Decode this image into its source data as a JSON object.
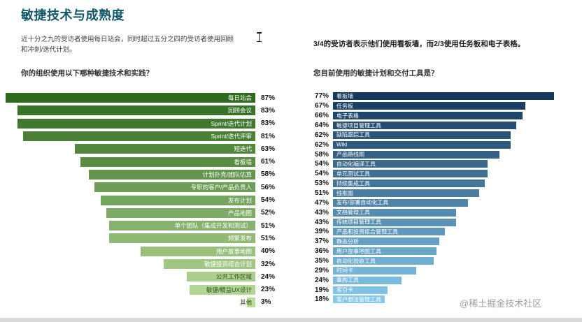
{
  "page": {
    "title": "敏捷技术与成熟度",
    "watermark": "@稀土掘金技术社区"
  },
  "left": {
    "intro": "近十分之九的受访者使用每日站会，同时超过五分之四的受访者使用回顾和冲刺/迭代计划。",
    "heading": "你的组织使用以下哪种敏捷技术和实践？"
  },
  "right": {
    "intro": "3/4的受访者表示他们使用看板墙，而2/3使用任务板和电子表格。",
    "heading": "您目前使用的敏捷计划和交付工具是？"
  },
  "chart_data": [
    {
      "type": "bar",
      "title": "你的组织使用以下哪种敏捷技术和实践？",
      "orientation": "horizontal",
      "bars_aligned": "right",
      "value_suffix": "%",
      "xlim": [
        0,
        100
      ],
      "grid": false,
      "legend": "none",
      "categories": [
        "每日站会",
        "回顾会议",
        "Sprint/迭代计划",
        "Sprint/迭代评审",
        "短迭代",
        "看板墙",
        "计划扑克/团队估算",
        "专职的客户/产品负责人",
        "发布计划",
        "产品地图",
        "单个团队（集成开发和测试）",
        "频繁发布",
        "用户故事地图",
        "敏捷投资组合计划",
        "公共工作区域",
        "敏捷/精益UX设计",
        "其他"
      ],
      "values": [
        87,
        83,
        83,
        81,
        63,
        61,
        58,
        56,
        54,
        52,
        51,
        51,
        40,
        32,
        24,
        23,
        3
      ],
      "colors": [
        "#2E6B1E",
        "#377226",
        "#40792E",
        "#498036",
        "#52873E",
        "#5A8E45",
        "#63954D",
        "#6C9C55",
        "#75A45D",
        "#7EAB65",
        "#87B26D",
        "#90B975",
        "#99C07D",
        "#A1C784",
        "#AACE8C",
        "#B3D594",
        "#BCDC9C"
      ],
      "label_dark_from_index": 14,
      "dark_label_color": "#2d4d1a"
    },
    {
      "type": "bar",
      "title": "您目前使用的敏捷计划和交付工具是？",
      "orientation": "horizontal",
      "bars_aligned": "left",
      "value_suffix": "%",
      "xlim": [
        0,
        100
      ],
      "grid": false,
      "legend": "none",
      "categories": [
        "看板墙",
        "任务板",
        "电子表格",
        "敏捷项目管理工具",
        "缺陷跟踪工具",
        "Wiki",
        "产品路线图",
        "自动化编译工具",
        "单元测试工具",
        "持续集成工具",
        "线框图",
        "发布/部署自动化工具",
        "文档管理工具",
        "传统项目管理工具",
        "产品和投资组合管理工具",
        "静态分析",
        "用户故事地图工具",
        "自动化验收工具",
        "时间卡",
        "重构工具",
        "索引卡",
        "客户想法管理工具"
      ],
      "values": [
        77,
        67,
        66,
        64,
        62,
        62,
        58,
        54,
        54,
        53,
        51,
        47,
        43,
        43,
        39,
        37,
        36,
        35,
        29,
        24,
        19,
        18
      ],
      "colors": [
        "#14395D",
        "#194064",
        "#1F476B",
        "#244D71",
        "#2A5478",
        "#2F5B7F",
        "#346286",
        "#3A698D",
        "#3F6F93",
        "#44769A",
        "#4A7DA1",
        "#4F84A8",
        "#558BAF",
        "#5A92B6",
        "#5F98BC",
        "#659FC3",
        "#6AA6CA",
        "#6FADD1",
        "#75B4D8",
        "#7ABADE",
        "#80C1E5",
        "#85C8EC"
      ]
    }
  ]
}
